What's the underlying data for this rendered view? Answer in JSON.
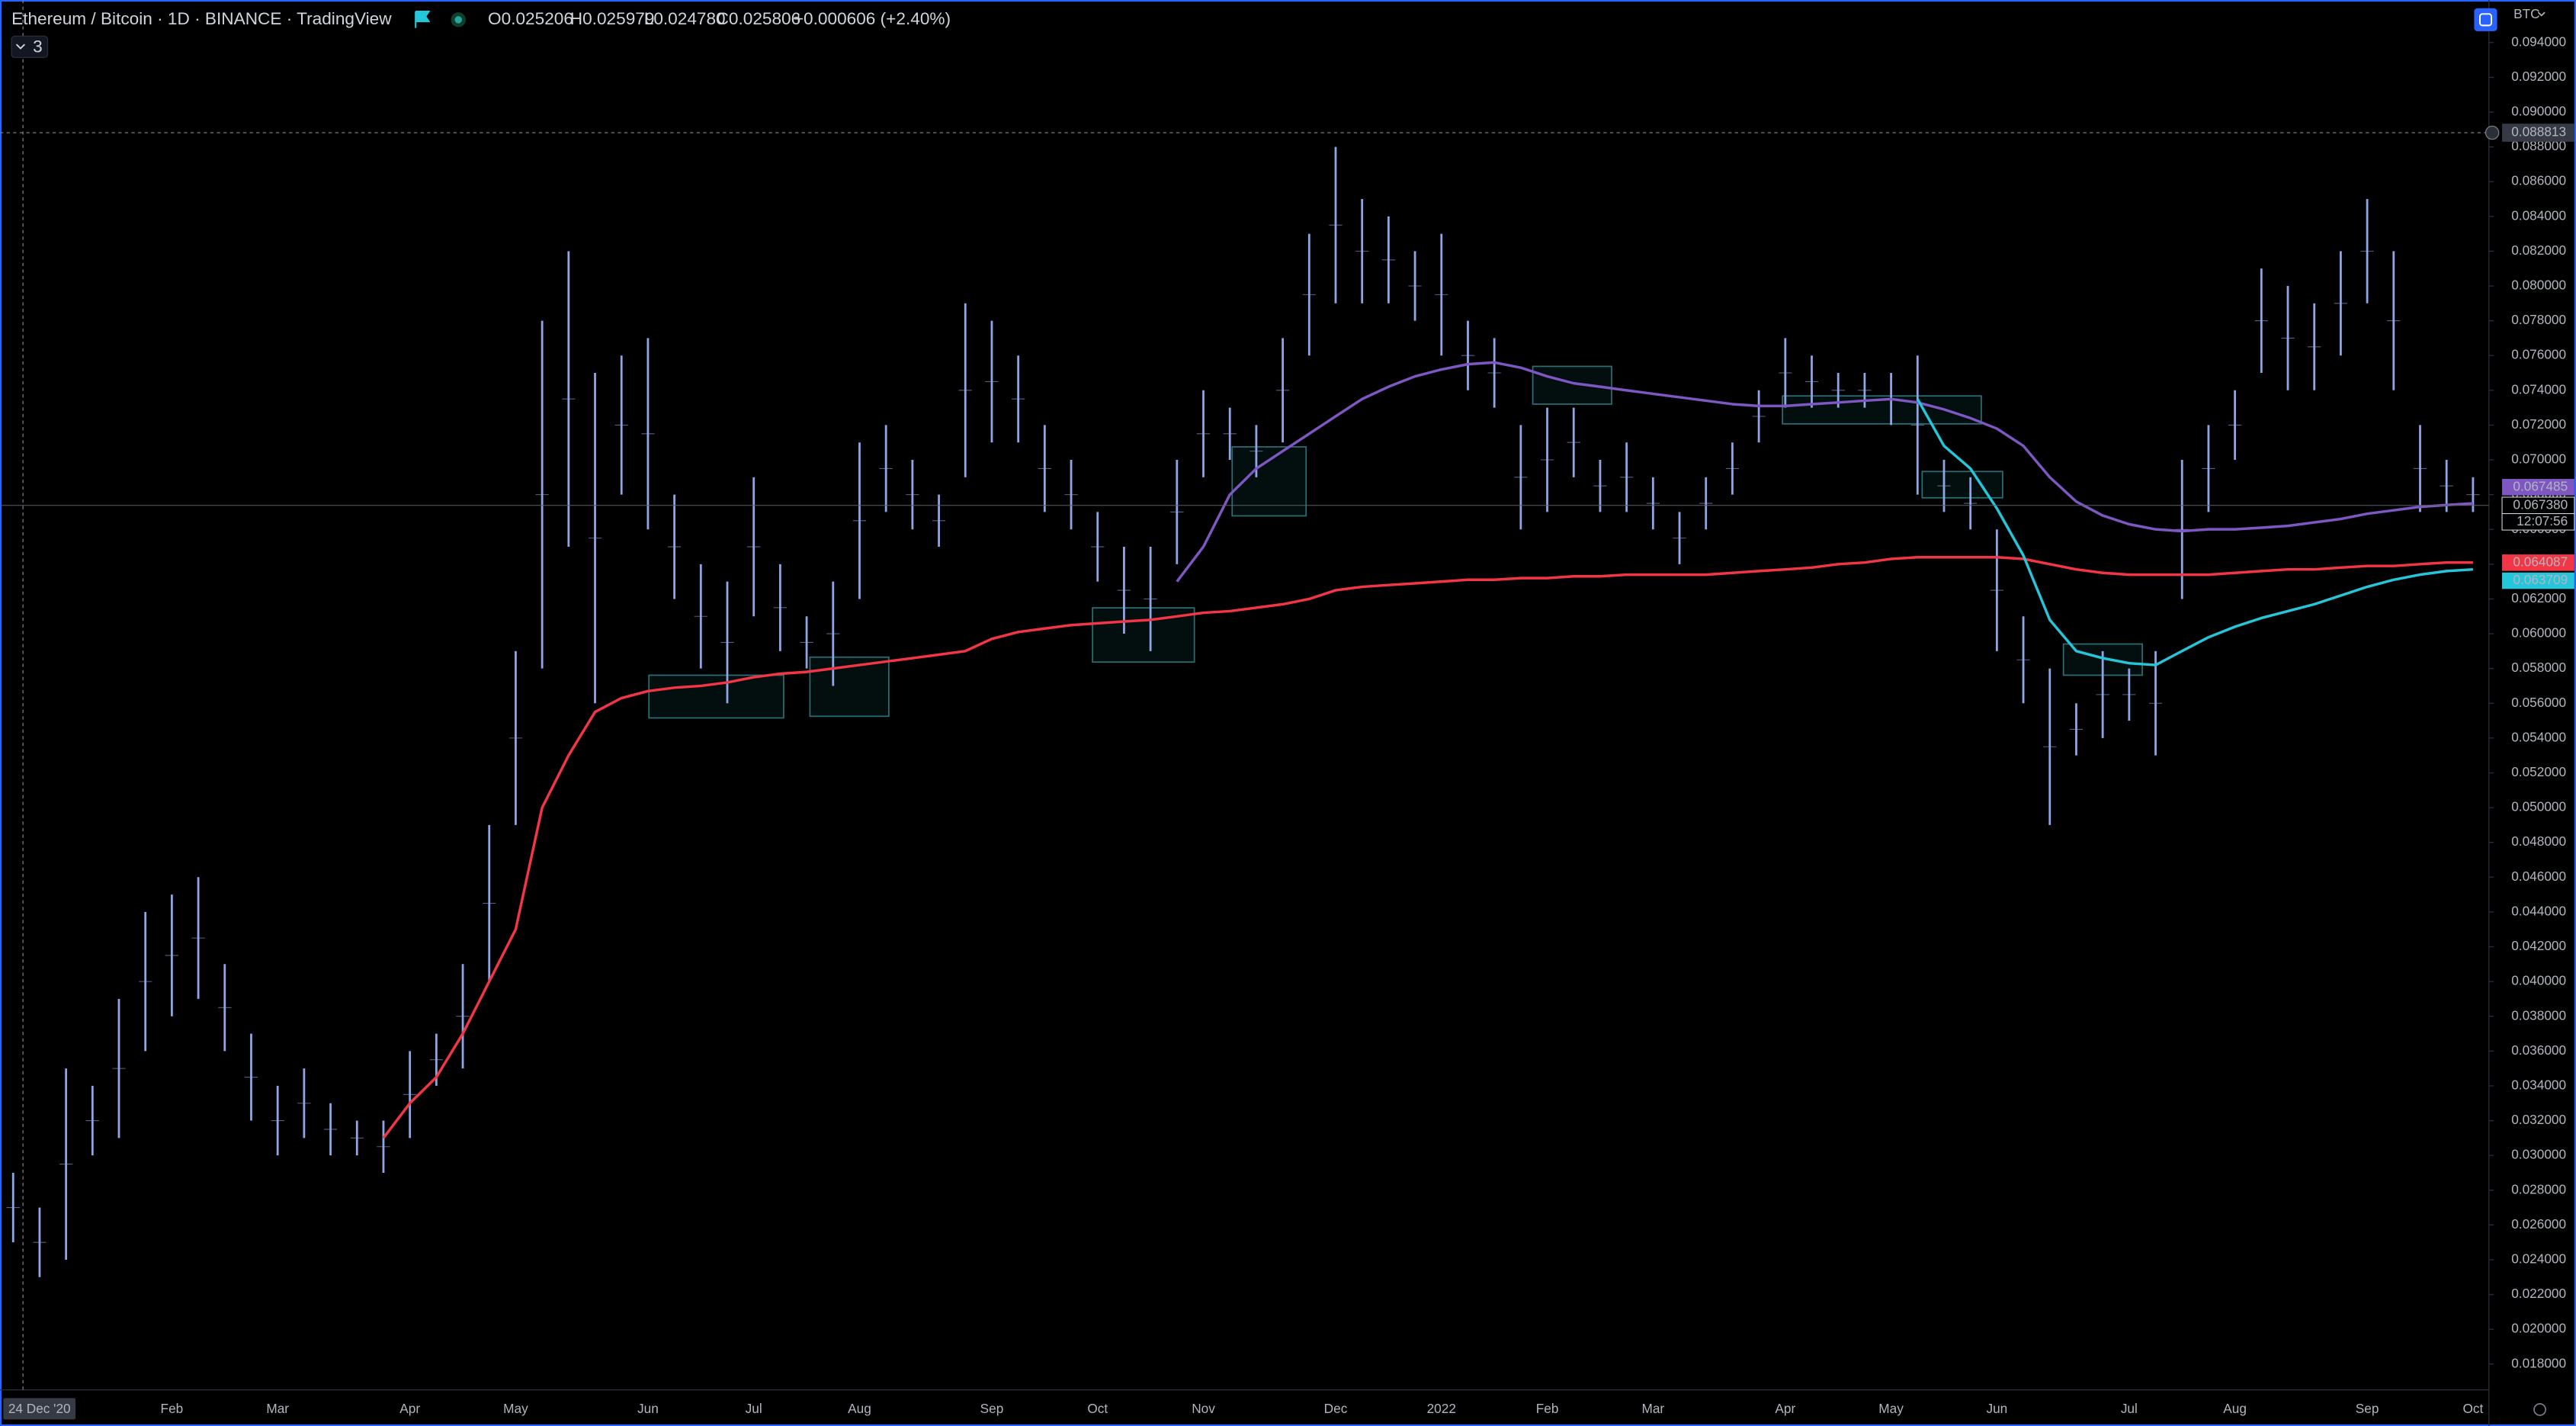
{
  "header": {
    "symbol": "Ethereum / Bitcoin · 1D · BINANCE · TradingView",
    "open": "O0.025206",
    "high": "H0.025979",
    "low": "L0.024780",
    "close": "C0.025806",
    "change": "+0.000606 (+2.40%)",
    "indicator_count": "3",
    "currency": "BTC"
  },
  "chart_data": {
    "type": "hilo",
    "categories": [
      "24 Dec '20",
      null,
      null,
      null,
      null,
      null,
      "Feb",
      null,
      null,
      null,
      "Mar",
      null,
      null,
      null,
      null,
      "Apr",
      null,
      null,
      null,
      "May",
      null,
      null,
      null,
      null,
      "Jun",
      null,
      null,
      null,
      "Jul",
      null,
      null,
      null,
      "Aug",
      null,
      null,
      null,
      null,
      "Sep",
      null,
      null,
      null,
      "Oct",
      null,
      null,
      null,
      "Nov",
      null,
      null,
      null,
      null,
      "Dec",
      null,
      null,
      null,
      "2022",
      null,
      null,
      null,
      "Feb",
      null,
      null,
      null,
      "Mar",
      null,
      null,
      null,
      null,
      "Apr",
      null,
      null,
      null,
      "May",
      null,
      null,
      null,
      "Jun",
      null,
      null,
      null,
      null,
      "Jul",
      null,
      null,
      null,
      "Aug",
      null,
      null,
      null,
      null,
      "Sep",
      null,
      null,
      null,
      "Oct"
    ],
    "series": [
      {
        "color": "#8ea5e6",
        "high": [
          0.029,
          0.027,
          0.035,
          0.034,
          0.039,
          0.044,
          0.045,
          0.046,
          0.041,
          0.037,
          0.034,
          0.035,
          0.033,
          0.032,
          0.032,
          0.036,
          0.037,
          0.041,
          0.049,
          0.059,
          0.078,
          0.082,
          0.075,
          0.076,
          0.077,
          0.068,
          0.064,
          0.063,
          0.069,
          0.064,
          0.061,
          0.063,
          0.071,
          0.072,
          0.07,
          0.068,
          0.079,
          0.078,
          0.076,
          0.072,
          0.07,
          0.067,
          0.065,
          0.065,
          0.07,
          0.074,
          0.073,
          0.072,
          0.077,
          0.083,
          0.088,
          0.085,
          0.084,
          0.082,
          0.083,
          0.078,
          0.077,
          0.072,
          0.073,
          0.073,
          0.07,
          0.071,
          0.069,
          0.067,
          0.069,
          0.071,
          0.074,
          0.077,
          0.076,
          0.075,
          0.075,
          0.075,
          0.076,
          0.07,
          0.069,
          0.066,
          0.061,
          0.058,
          0.056,
          0.059,
          0.058,
          0.059,
          0.07,
          0.072,
          0.074,
          0.081,
          0.08,
          0.079,
          0.082,
          0.085,
          0.082,
          0.072,
          0.07,
          0.069
        ],
        "low": [
          0.025,
          0.023,
          0.024,
          0.03,
          0.031,
          0.036,
          0.038,
          0.039,
          0.036,
          0.032,
          0.03,
          0.031,
          0.03,
          0.03,
          0.029,
          0.031,
          0.034,
          0.035,
          0.04,
          0.049,
          0.058,
          0.065,
          0.056,
          0.068,
          0.066,
          0.062,
          0.058,
          0.056,
          0.061,
          0.059,
          0.058,
          0.057,
          0.062,
          0.067,
          0.066,
          0.065,
          0.069,
          0.071,
          0.071,
          0.067,
          0.066,
          0.063,
          0.06,
          0.059,
          0.064,
          0.069,
          0.07,
          0.069,
          0.071,
          0.076,
          0.079,
          0.079,
          0.079,
          0.078,
          0.076,
          0.074,
          0.073,
          0.066,
          0.067,
          0.069,
          0.067,
          0.067,
          0.066,
          0.064,
          0.066,
          0.068,
          0.071,
          0.073,
          0.073,
          0.073,
          0.073,
          0.072,
          0.068,
          0.067,
          0.066,
          0.059,
          0.056,
          0.049,
          0.053,
          0.054,
          0.055,
          0.053,
          0.062,
          0.067,
          0.07,
          0.075,
          0.074,
          0.074,
          0.076,
          0.079,
          0.074,
          0.067,
          0.067,
          0.067
        ]
      }
    ],
    "lines": [
      {
        "color": "#f23645",
        "values": [
          null,
          null,
          null,
          null,
          null,
          null,
          null,
          null,
          null,
          null,
          null,
          null,
          null,
          null,
          0.031,
          0.033,
          0.0345,
          0.037,
          0.04,
          0.043,
          0.05,
          0.053,
          0.0555,
          0.0563,
          0.0567,
          0.0569,
          0.057,
          0.0572,
          0.0575,
          0.0577,
          0.0578,
          0.058,
          0.0582,
          0.0584,
          0.0586,
          0.0588,
          0.059,
          0.0597,
          0.0601,
          0.0603,
          0.0605,
          0.0606,
          0.0607,
          0.0608,
          0.061,
          0.0612,
          0.0613,
          0.0615,
          0.0617,
          0.062,
          0.0625,
          0.0627,
          0.0628,
          0.0629,
          0.063,
          0.0631,
          0.0631,
          0.0632,
          0.0632,
          0.0633,
          0.0633,
          0.0634,
          0.0634,
          0.0634,
          0.0634,
          0.0635,
          0.0636,
          0.0637,
          0.0638,
          0.064,
          0.0641,
          0.0643,
          0.0644,
          0.0644,
          0.0644,
          0.0644,
          0.0643,
          0.064,
          0.0637,
          0.0635,
          0.0634,
          0.0634,
          0.0634,
          0.0634,
          0.0635,
          0.0636,
          0.0637,
          0.0637,
          0.0638,
          0.0639,
          0.0639,
          0.064,
          0.0641,
          0.0641
        ]
      },
      {
        "color": "#7e57c2",
        "values": [
          null,
          null,
          null,
          null,
          null,
          null,
          null,
          null,
          null,
          null,
          null,
          null,
          null,
          null,
          null,
          null,
          null,
          null,
          null,
          null,
          null,
          null,
          null,
          null,
          null,
          null,
          null,
          null,
          null,
          null,
          null,
          null,
          null,
          null,
          null,
          null,
          null,
          null,
          null,
          null,
          null,
          null,
          null,
          null,
          0.063,
          0.065,
          0.068,
          0.0695,
          0.0705,
          0.0715,
          0.0725,
          0.0735,
          0.0742,
          0.0748,
          0.0752,
          0.0755,
          0.0756,
          0.0753,
          0.0748,
          0.0744,
          0.0742,
          0.074,
          0.0738,
          0.0736,
          0.0734,
          0.0732,
          0.0731,
          0.0731,
          0.0732,
          0.0733,
          0.0734,
          0.0735,
          0.0733,
          0.0729,
          0.0724,
          0.0718,
          0.0708,
          0.069,
          0.0676,
          0.0668,
          0.0663,
          0.066,
          0.0659,
          0.066,
          0.066,
          0.0661,
          0.0662,
          0.0664,
          0.0666,
          0.0669,
          0.0671,
          0.0673,
          0.0674,
          0.0675
        ]
      },
      {
        "color": "#26c6da",
        "values": [
          null,
          null,
          null,
          null,
          null,
          null,
          null,
          null,
          null,
          null,
          null,
          null,
          null,
          null,
          null,
          null,
          null,
          null,
          null,
          null,
          null,
          null,
          null,
          null,
          null,
          null,
          null,
          null,
          null,
          null,
          null,
          null,
          null,
          null,
          null,
          null,
          null,
          null,
          null,
          null,
          null,
          null,
          null,
          null,
          null,
          null,
          null,
          null,
          null,
          null,
          null,
          null,
          null,
          null,
          null,
          null,
          null,
          null,
          null,
          null,
          null,
          null,
          null,
          null,
          null,
          null,
          null,
          null,
          null,
          null,
          null,
          null,
          0.0735,
          0.0708,
          0.0695,
          0.0672,
          0.0645,
          0.0608,
          0.059,
          0.0586,
          0.0583,
          0.0582,
          0.059,
          0.0598,
          0.0604,
          0.0609,
          0.0613,
          0.0617,
          0.0622,
          0.0627,
          0.0631,
          0.0634,
          0.0636,
          0.0637
        ]
      }
    ],
    "ylim": [
      0.0168,
      0.0955
    ],
    "yticks": [
      {
        "value": 0.018,
        "label": "0.018000"
      },
      {
        "value": 0.02,
        "label": "0.020000"
      },
      {
        "value": 0.022,
        "label": "0.022000"
      },
      {
        "value": 0.024,
        "label": "0.024000"
      },
      {
        "value": 0.026,
        "label": "0.026000"
      },
      {
        "value": 0.028,
        "label": "0.028000"
      },
      {
        "value": 0.03,
        "label": "0.030000"
      },
      {
        "value": 0.032,
        "label": "0.032000"
      },
      {
        "value": 0.034,
        "label": "0.034000"
      },
      {
        "value": 0.036,
        "label": "0.036000"
      },
      {
        "value": 0.038,
        "label": "0.038000"
      },
      {
        "value": 0.04,
        "label": "0.040000"
      },
      {
        "value": 0.042,
        "label": "0.042000"
      },
      {
        "value": 0.044,
        "label": "0.044000"
      },
      {
        "value": 0.046,
        "label": "0.046000"
      },
      {
        "value": 0.048,
        "label": "0.048000"
      },
      {
        "value": 0.05,
        "label": "0.050000"
      },
      {
        "value": 0.052,
        "label": "0.052000"
      },
      {
        "value": 0.054,
        "label": "0.054000"
      },
      {
        "value": 0.056,
        "label": "0.056000"
      },
      {
        "value": 0.058,
        "label": "0.058000"
      },
      {
        "value": 0.06,
        "label": "0.060000"
      },
      {
        "value": 0.062,
        "label": "0.062000"
      },
      {
        "value": 0.064,
        "label": "0.064000"
      },
      {
        "value": 0.066,
        "label": "0.066000"
      },
      {
        "value": 0.068,
        "label": "0.068000"
      },
      {
        "value": 0.07,
        "label": "0.070000"
      },
      {
        "value": 0.072,
        "label": "0.072000"
      },
      {
        "value": 0.074,
        "label": "0.074000"
      },
      {
        "value": 0.076,
        "label": "0.076000"
      },
      {
        "value": 0.078,
        "label": "0.078000"
      },
      {
        "value": 0.08,
        "label": "0.080000"
      },
      {
        "value": 0.082,
        "label": "0.082000"
      },
      {
        "value": 0.084,
        "label": "0.084000"
      },
      {
        "value": 0.086,
        "label": "0.086000"
      },
      {
        "value": 0.088,
        "label": "0.088000"
      },
      {
        "value": 0.09,
        "label": "0.090000"
      },
      {
        "value": 0.092,
        "label": "0.092000"
      },
      {
        "value": 0.094,
        "label": "0.094000"
      }
    ],
    "crosshair_label": {
      "value": 0.088813,
      "label": "0.088813"
    },
    "price_labels": [
      {
        "value": 0.067485,
        "label": "0.067485",
        "color": "#7e57c2"
      },
      {
        "value": 0.06738,
        "label": "0.067380",
        "color": "#d1d4dc"
      },
      {
        "value": 0.064087,
        "label": "0.064087",
        "color": "#f23645"
      },
      {
        "value": 0.063709,
        "label": "0.063709",
        "color": "#26c6da"
      }
    ],
    "countdown": "12:07:56"
  }
}
